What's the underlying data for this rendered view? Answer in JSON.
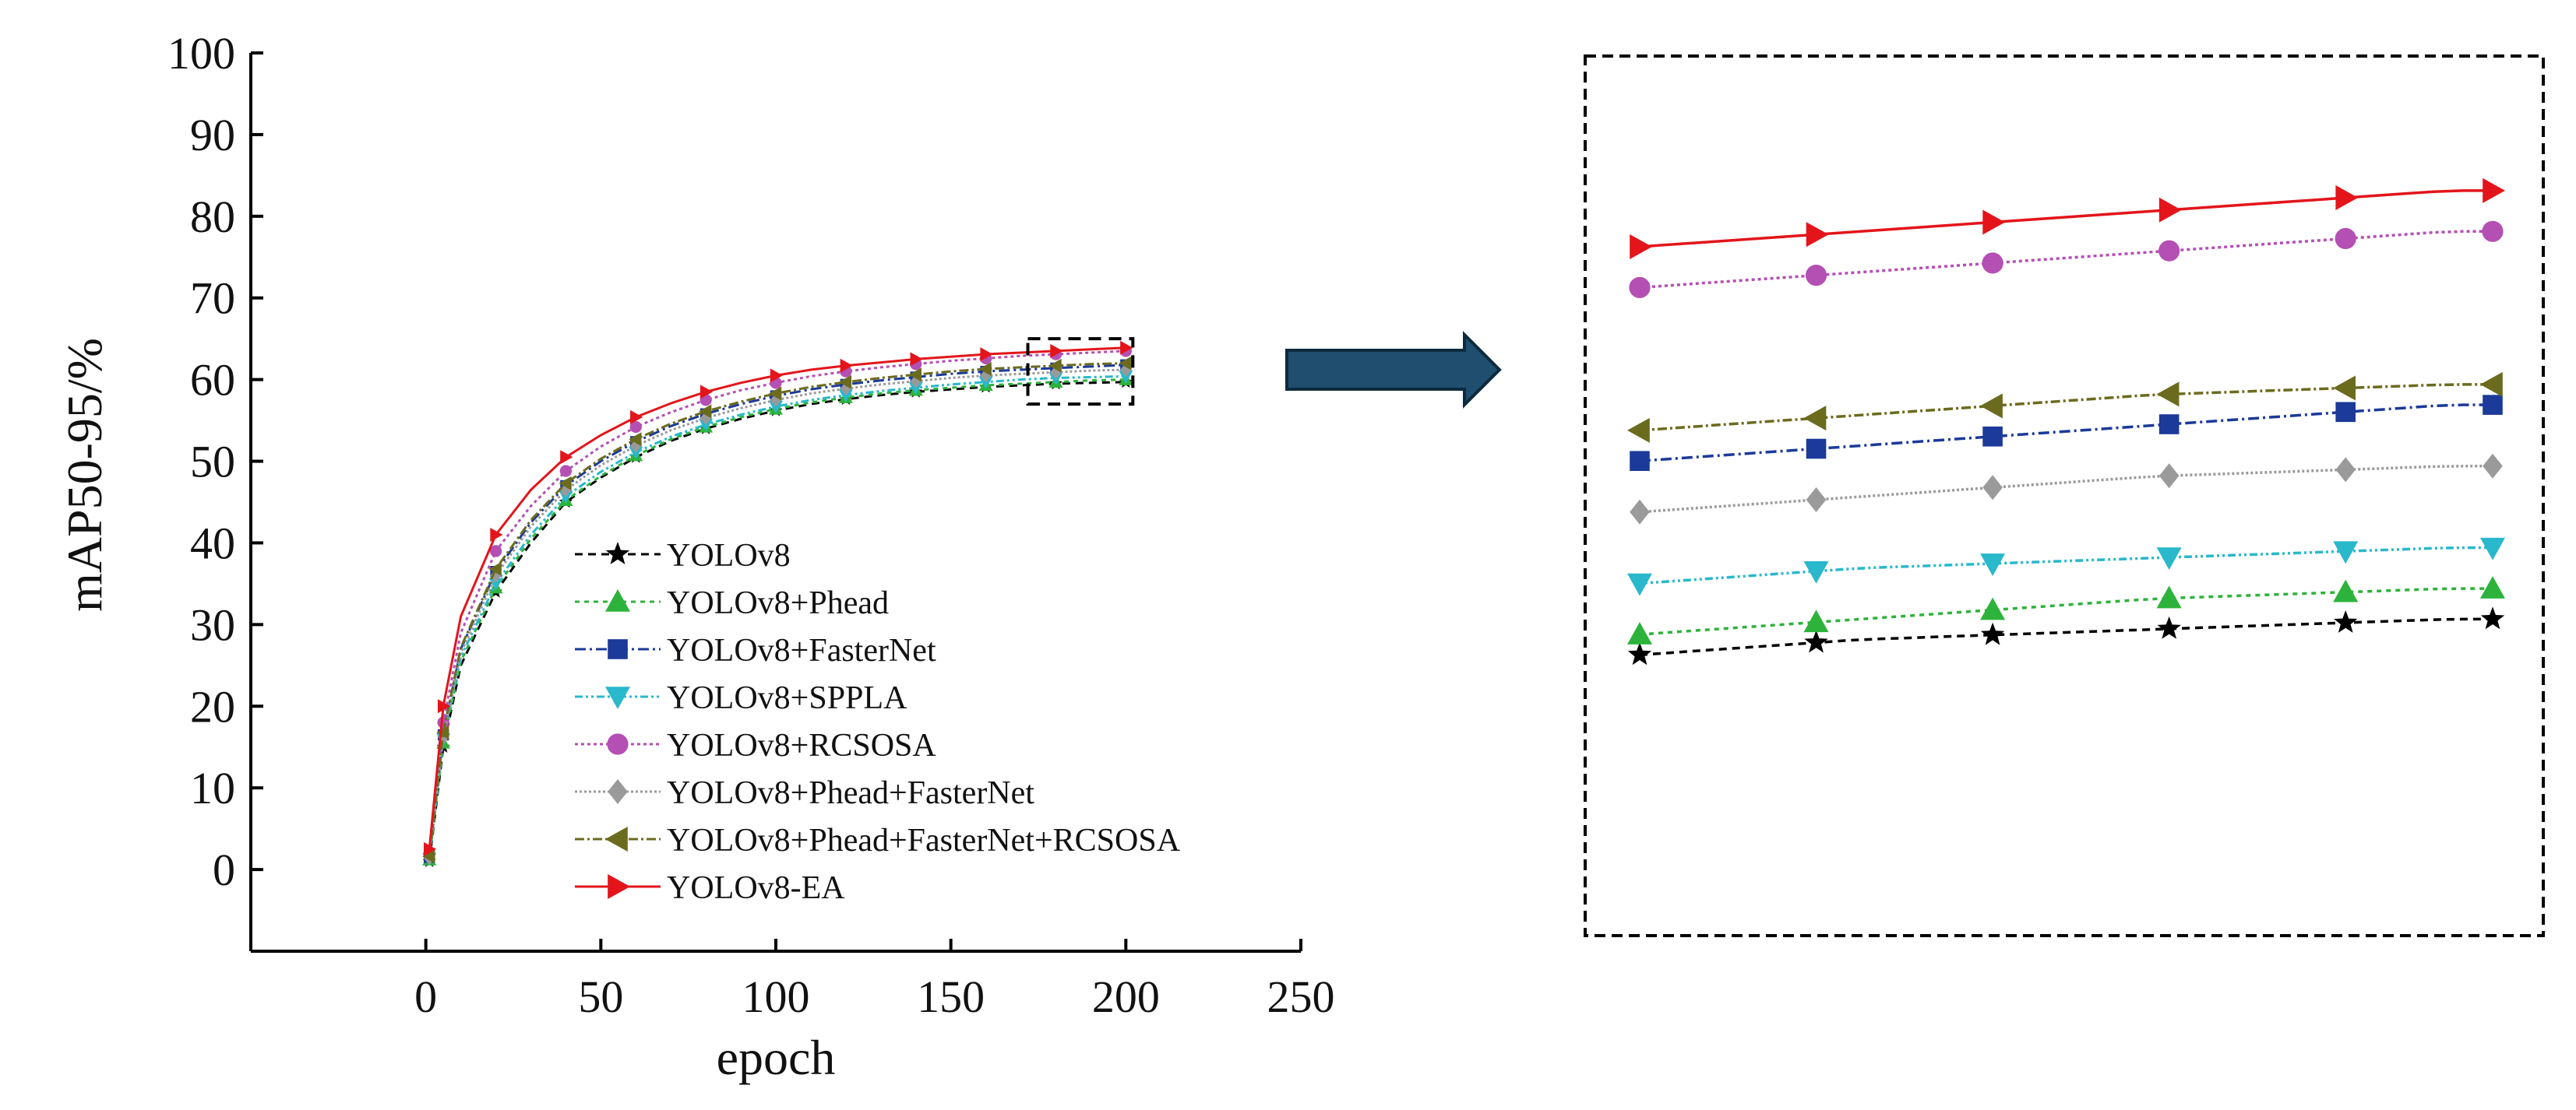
{
  "chart_data": {
    "type": "line",
    "xlabel": "epoch",
    "ylabel": "mAP50-95/%",
    "xlim": [
      -50,
      250
    ],
    "ylim": [
      -10,
      100
    ],
    "xticks": [
      0,
      50,
      100,
      150,
      200,
      250
    ],
    "yticks": [
      0,
      10,
      20,
      30,
      40,
      50,
      60,
      70,
      80,
      90,
      100
    ],
    "legend_position": "center-right inside main plot",
    "zoom_region": {
      "x": [
        172,
        202
      ],
      "y": [
        57,
        65
      ]
    },
    "series": [
      {
        "name": "YOLOv8",
        "color": "#000000",
        "dash": "10,7",
        "marker": "star",
        "x": [
          1,
          5,
          10,
          20,
          30,
          40,
          50,
          60,
          70,
          80,
          90,
          100,
          110,
          120,
          130,
          140,
          150,
          160,
          170,
          180,
          190,
          200
        ],
        "y": [
          1.0,
          15.0,
          25.0,
          34.0,
          40.0,
          45.0,
          48.0,
          50.5,
          52.5,
          54.0,
          55.2,
          56.2,
          57.0,
          57.6,
          58.1,
          58.5,
          58.8,
          59.1,
          59.3,
          59.5,
          59.6,
          59.7
        ]
      },
      {
        "name": "YOLOv8+Phead",
        "color": "#2db33b",
        "dash": "6,6",
        "marker": "triangle-up",
        "x": [
          1,
          5,
          10,
          20,
          30,
          40,
          50,
          60,
          70,
          80,
          90,
          100,
          110,
          120,
          130,
          140,
          150,
          160,
          170,
          180,
          190,
          200
        ],
        "y": [
          1.2,
          15.5,
          25.5,
          34.5,
          40.5,
          45.2,
          48.2,
          50.7,
          52.7,
          54.2,
          55.4,
          56.4,
          57.2,
          57.8,
          58.3,
          58.7,
          59.0,
          59.3,
          59.5,
          59.7,
          59.9,
          60.0
        ]
      },
      {
        "name": "YOLOv8+FasterNet",
        "color": "#1b3a99",
        "dash": "14,5,3,5",
        "marker": "square",
        "x": [
          1,
          5,
          10,
          20,
          30,
          40,
          50,
          60,
          70,
          80,
          90,
          100,
          110,
          120,
          130,
          140,
          150,
          160,
          170,
          180,
          190,
          200
        ],
        "y": [
          1.5,
          16.5,
          27.0,
          36.5,
          42.5,
          47.0,
          50.0,
          52.4,
          54.3,
          55.8,
          57.0,
          58.0,
          58.8,
          59.4,
          59.9,
          60.3,
          60.7,
          61.0,
          61.2,
          61.4,
          61.6,
          61.8
        ]
      },
      {
        "name": "YOLOv8+SPPLA",
        "color": "#29b8cc",
        "dash": "10,4,3,4,3,4",
        "marker": "triangle-down",
        "x": [
          1,
          5,
          10,
          20,
          30,
          40,
          50,
          60,
          70,
          80,
          90,
          100,
          110,
          120,
          130,
          140,
          150,
          160,
          170,
          180,
          190,
          200
        ],
        "y": [
          1.3,
          16.0,
          26.0,
          35.0,
          41.0,
          45.7,
          48.7,
          51.1,
          53.0,
          54.5,
          55.7,
          56.7,
          57.5,
          58.1,
          58.6,
          59.0,
          59.4,
          59.7,
          60.0,
          60.2,
          60.3,
          60.4
        ]
      },
      {
        "name": "YOLOv8+RCSOSA",
        "color": "#b44fb4",
        "dash": "4,4",
        "marker": "circle",
        "x": [
          1,
          5,
          10,
          20,
          30,
          40,
          50,
          60,
          70,
          80,
          90,
          100,
          110,
          120,
          130,
          140,
          150,
          160,
          170,
          180,
          190,
          200
        ],
        "y": [
          2.0,
          18.0,
          29.0,
          39.0,
          44.5,
          48.8,
          51.8,
          54.2,
          56.0,
          57.5,
          58.7,
          59.6,
          60.4,
          61.0,
          61.5,
          61.9,
          62.3,
          62.6,
          62.9,
          63.1,
          63.3,
          63.5
        ]
      },
      {
        "name": "YOLOv8+Phead+FasterNet",
        "color": "#9a9a9a",
        "dash": "3,3",
        "marker": "diamond",
        "x": [
          1,
          5,
          10,
          20,
          30,
          40,
          50,
          60,
          70,
          80,
          90,
          100,
          110,
          120,
          130,
          140,
          150,
          160,
          170,
          180,
          190,
          200
        ],
        "y": [
          1.4,
          16.2,
          26.5,
          36.0,
          42.0,
          46.5,
          49.5,
          51.9,
          53.8,
          55.3,
          56.5,
          57.5,
          58.3,
          58.9,
          59.4,
          59.8,
          60.2,
          60.5,
          60.7,
          60.9,
          61.1,
          61.2
        ]
      },
      {
        "name": "YOLOv8+Phead+FasterNet+RCSOSA",
        "color": "#6b6b1e",
        "dash": "12,4,3,4",
        "marker": "triangle-left",
        "x": [
          1,
          5,
          10,
          20,
          30,
          40,
          50,
          60,
          70,
          80,
          90,
          100,
          110,
          120,
          130,
          140,
          150,
          160,
          170,
          180,
          190,
          200
        ],
        "y": [
          1.6,
          16.8,
          27.2,
          36.8,
          42.8,
          47.3,
          50.3,
          52.7,
          54.6,
          56.1,
          57.3,
          58.3,
          59.1,
          59.7,
          60.2,
          60.6,
          61.0,
          61.3,
          61.5,
          61.7,
          61.9,
          62.0
        ]
      },
      {
        "name": "YOLOv8-EA",
        "color": "#e3151b",
        "dash": "",
        "marker": "triangle-right",
        "x": [
          1,
          5,
          10,
          20,
          30,
          40,
          50,
          60,
          70,
          80,
          90,
          100,
          110,
          120,
          130,
          140,
          150,
          160,
          170,
          180,
          190,
          200
        ],
        "y": [
          2.5,
          20.0,
          31.0,
          41.0,
          46.5,
          50.5,
          53.2,
          55.4,
          57.1,
          58.5,
          59.6,
          60.5,
          61.2,
          61.7,
          62.1,
          62.5,
          62.8,
          63.1,
          63.3,
          63.5,
          63.7,
          63.9
        ]
      }
    ]
  }
}
